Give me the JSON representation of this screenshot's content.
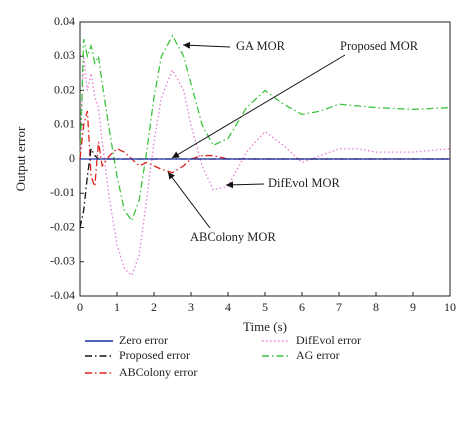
{
  "chart_data": {
    "type": "line",
    "x_label": "Time (s)",
    "y_label": "Output error",
    "xlim": [
      0,
      10
    ],
    "ylim": [
      -0.04,
      0.04
    ],
    "xticks": [
      0,
      1,
      2,
      3,
      4,
      5,
      6,
      7,
      8,
      9,
      10
    ],
    "yticks": [
      -0.04,
      -0.03,
      -0.02,
      -0.01,
      0,
      0.01,
      0.02,
      0.03,
      0.04
    ],
    "x": [
      0,
      0.1,
      0.2,
      0.3,
      0.4,
      0.5,
      0.6,
      0.8,
      1.0,
      1.2,
      1.4,
      1.6,
      1.8,
      2.0,
      2.2,
      2.5,
      2.8,
      3.0,
      3.3,
      3.6,
      4.0,
      4.5,
      5.0,
      5.5,
      6.0,
      6.5,
      7.0,
      7.5,
      8.0,
      9.0,
      10.0
    ],
    "series": [
      {
        "name": "DifEvol error",
        "color": "#e87ad8",
        "line_style": "dotted",
        "values": [
          0,
          0.03,
          0.02,
          0.025,
          0.018,
          0.015,
          0.005,
          -0.012,
          -0.025,
          -0.032,
          -0.034,
          -0.028,
          -0.012,
          0.005,
          0.018,
          0.026,
          0.02,
          0.01,
          -0.002,
          -0.009,
          -0.008,
          0.002,
          0.008,
          0.004,
          -0.001,
          0.001,
          0.003,
          0.003,
          0.002,
          0.002,
          0.003
        ]
      },
      {
        "name": "AG error",
        "color": "#3cc43c",
        "line_style": "dashdot",
        "values": [
          0,
          0.035,
          0.03,
          0.033,
          0.028,
          0.03,
          0.022,
          0.008,
          -0.005,
          -0.015,
          -0.018,
          -0.012,
          0.002,
          0.018,
          0.03,
          0.036,
          0.03,
          0.022,
          0.01,
          0.004,
          0.006,
          0.015,
          0.02,
          0.016,
          0.013,
          0.014,
          0.016,
          0.0155,
          0.015,
          0.0145,
          0.015
        ]
      },
      {
        "name": "ABColony error",
        "color": "#e02020",
        "line_style": "dashdot",
        "values": [
          0,
          0.01,
          0.014,
          -0.005,
          -0.008,
          0.005,
          -0.002,
          0.001,
          0.003,
          0.002,
          0,
          -0.002,
          -0.001,
          -0.002,
          -0.003,
          -0.004,
          -0.002,
          0,
          0.001,
          0.001,
          0,
          0,
          0,
          0,
          0,
          0,
          0,
          0,
          0,
          0,
          0
        ]
      },
      {
        "name": "Proposed error",
        "color": "#111111",
        "line_style": "dashdot",
        "values": [
          -0.02,
          -0.015,
          -0.005,
          0.003,
          0.001,
          0,
          0,
          0,
          0,
          0,
          0,
          0,
          0,
          0,
          0,
          0,
          0,
          0,
          0,
          0,
          0,
          0,
          0,
          0,
          0,
          0,
          0,
          0,
          0,
          0,
          0
        ]
      },
      {
        "name": "Zero error",
        "color": "#1a2fa0",
        "line_style": "solid",
        "values": [
          0,
          0,
          0,
          0,
          0,
          0,
          0,
          0,
          0,
          0,
          0,
          0,
          0,
          0,
          0,
          0,
          0,
          0,
          0,
          0,
          0,
          0,
          0,
          0,
          0,
          0,
          0,
          0,
          0,
          0,
          0
        ]
      }
    ],
    "annotations": [
      "GA MOR",
      "Proposed MOR",
      "DifEvol MOR",
      "ABColony MOR"
    ]
  }
}
